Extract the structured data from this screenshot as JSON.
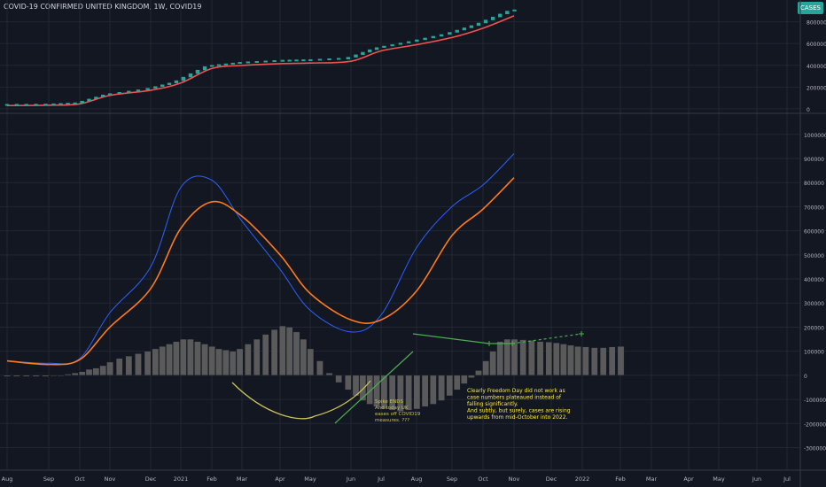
{
  "header": {
    "title": "COVID-19 CONFIRMED UNITED KINGDOM, 1W, COVID19",
    "badge": "CASES"
  },
  "colors": {
    "background": "#131722",
    "grid": "#232733",
    "axis_text": "#b2b5be",
    "candle_up": "#26a69a",
    "cases_red": "#ef5350",
    "blue": "#2962ff",
    "orange": "#ff7a1a",
    "histogram": "#5a5a5a",
    "green_annot": "#4caf50",
    "yellow_annot": "#c9c25a",
    "text_annot": "#ffeb3b"
  },
  "x_axis": {
    "labels": [
      "Aug",
      "Sep",
      "Oct",
      "Nov",
      "Dec",
      "2021",
      "Feb",
      "Mar",
      "Apr",
      "May",
      "Jun",
      "Jul",
      "Aug",
      "Sep",
      "Oct",
      "Nov",
      "Dec",
      "2022",
      "Feb",
      "Mar",
      "Apr",
      "May",
      "Jun",
      "Jul"
    ]
  },
  "chart_data": [
    {
      "type": "line",
      "panel": "top",
      "series": [
        {
          "name": "",
          "x": [
            "2020-08",
            "2020-09",
            "2020-10",
            "2020-11",
            "2020-12",
            "2021-01",
            "2021-02",
            "2021-03",
            "2021-04",
            "2021-05",
            "2021-06",
            "2021-07",
            "2021-08",
            "2021-09",
            "2021-10",
            "2021-11"
          ],
          "values": [
            320000,
            350000,
            480000,
            1300000,
            1800000,
            2500000,
            3900000,
            4200000,
            4370000,
            4430000,
            4600000,
            5600000,
            6200000,
            6900000,
            7800000,
            9000000
          ]
        }
      ],
      "y_ticks": [
        0,
        2000000,
        4000000,
        6000000,
        8000000
      ],
      "ylim": [
        -250000,
        10000000
      ]
    },
    {
      "type": "line",
      "panel": "bottom",
      "series": [
        {
          "name": "",
          "color": "blue",
          "x": [
            "2020-08",
            "2020-09",
            "2020-10",
            "2020-11",
            "2020-12",
            "2021-01",
            "2021-02",
            "2021-03",
            "2021-04",
            "2021-05",
            "2021-06",
            "2021-07",
            "2021-08",
            "2021-09",
            "2021-10",
            "2021-11"
          ],
          "values": [
            60000,
            50000,
            70000,
            260000,
            450000,
            780000,
            810000,
            640000,
            440000,
            270000,
            180000,
            250000,
            530000,
            700000,
            790000,
            920000
          ]
        },
        {
          "name": "",
          "color": "orange",
          "x": [
            "2020-08",
            "2020-09",
            "2020-10",
            "2020-11",
            "2020-12",
            "2021-01",
            "2021-02",
            "2021-03",
            "2021-04",
            "2021-05",
            "2021-06",
            "2021-07",
            "2021-08",
            "2021-09",
            "2021-10",
            "2021-11"
          ],
          "values": [
            60000,
            45000,
            65000,
            200000,
            360000,
            610000,
            720000,
            660000,
            500000,
            340000,
            230000,
            230000,
            350000,
            580000,
            690000,
            820000
          ]
        }
      ],
      "histogram": {
        "x_start": "2020-08",
        "values": [
          -5000,
          -5000,
          -5000,
          -5000,
          -5000,
          -3000,
          0,
          5000,
          10000,
          15000,
          25000,
          30000,
          40000,
          55000,
          70000,
          80000,
          90000,
          100000,
          110000,
          120000,
          130000,
          140000,
          150000,
          150000,
          140000,
          130000,
          120000,
          110000,
          105000,
          100000,
          110000,
          130000,
          150000,
          170000,
          190000,
          205000,
          200000,
          180000,
          150000,
          110000,
          60000,
          10000,
          -30000,
          -60000,
          -85000,
          -105000,
          -120000,
          -130000,
          -140000,
          -145000,
          -150000,
          -145000,
          -140000,
          -130000,
          -120000,
          -105000,
          -85000,
          -60000,
          -35000,
          -10000,
          20000,
          60000,
          100000,
          140000,
          150000,
          150000,
          148000,
          145000,
          140000,
          138000,
          135000,
          130000,
          125000,
          120000,
          118000,
          115000,
          115000,
          118000,
          120000
        ],
        "weeks_per_month": 4.33
      },
      "y_ticks": [
        -300000,
        -200000,
        -100000,
        0,
        100000,
        200000,
        300000,
        400000,
        500000,
        600000,
        700000,
        800000,
        900000,
        1000000
      ],
      "ylim": [
        -390000,
        1080000
      ]
    }
  ],
  "annotations": {
    "spike_note": [
      "Spike ENDS",
      "And today UK",
      "eases off COVID19",
      "measures. ???"
    ],
    "freedom_note": [
      "Clearly Freedom Day did not work as",
      "case numbers plateaued instead of",
      "falling significantly.",
      "And subtly, but surely, cases are rising",
      "upwards from mid-October into 2022."
    ]
  }
}
